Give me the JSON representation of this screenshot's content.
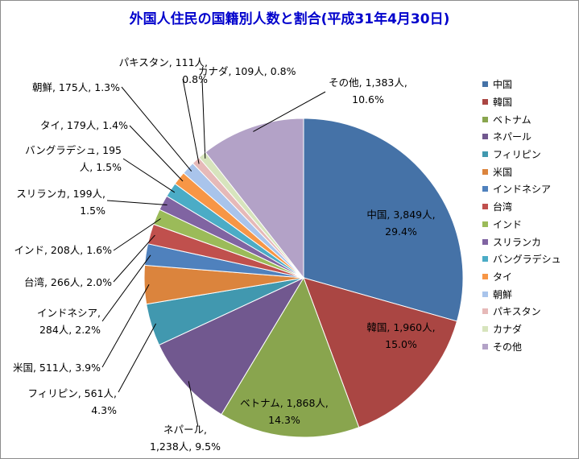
{
  "chart_data": {
    "type": "pie",
    "title": "外国人住民の国籍別人数と割合(平成31年4月30日)",
    "unit": "人",
    "legend_position": "right",
    "slices": [
      {
        "name": "中国",
        "value": 3849,
        "percent": "29.4%",
        "color": "#4572a7",
        "label_lines": [
          "中国, 3,849人,",
          "29.4%"
        ]
      },
      {
        "name": "韓国",
        "value": 1960,
        "percent": "15.0%",
        "color": "#aa4643",
        "label_lines": [
          "韓国, 1,960人,",
          "15.0%"
        ]
      },
      {
        "name": "ベトナム",
        "value": 1868,
        "percent": "14.3%",
        "color": "#89a54e",
        "label_lines": [
          "ベトナム, 1,868人,",
          "14.3%"
        ]
      },
      {
        "name": "ネパール",
        "value": 1238,
        "percent": "9.5%",
        "color": "#71588f",
        "label_lines": [
          "ネパール,",
          "1,238人, 9.5%"
        ]
      },
      {
        "name": "フィリピン",
        "value": 561,
        "percent": "4.3%",
        "color": "#4198af",
        "label_lines": [
          "フィリピン, 561人,",
          "4.3%"
        ]
      },
      {
        "name": "米国",
        "value": 511,
        "percent": "3.9%",
        "color": "#db843d",
        "label_lines": [
          "米国, 511人, 3.9%"
        ]
      },
      {
        "name": "インドネシア",
        "value": 284,
        "percent": "2.2%",
        "color": "#4f81bd",
        "label_lines": [
          "インドネシア,",
          "284人, 2.2%"
        ]
      },
      {
        "name": "台湾",
        "value": 266,
        "percent": "2.0%",
        "color": "#c0504d",
        "label_lines": [
          "台湾, 266人, 2.0%"
        ]
      },
      {
        "name": "インド",
        "value": 208,
        "percent": "1.6%",
        "color": "#9bbb59",
        "label_lines": [
          "インド, 208人, 1.6%"
        ]
      },
      {
        "name": "スリランカ",
        "value": 199,
        "percent": "1.5%",
        "color": "#8064a2",
        "label_lines": [
          "スリランカ, 199人,",
          "1.5%"
        ]
      },
      {
        "name": "バングラデシュ",
        "value": 195,
        "percent": "1.5%",
        "color": "#4bacc6",
        "label_lines": [
          "バングラデシュ, 195",
          "人, 1.5%"
        ]
      },
      {
        "name": "タイ",
        "value": 179,
        "percent": "1.4%",
        "color": "#f79646",
        "label_lines": [
          "タイ, 179人, 1.4%"
        ]
      },
      {
        "name": "朝鮮",
        "value": 175,
        "percent": "1.3%",
        "color": "#a9c4eb",
        "label_lines": [
          "朝鮮, 175人, 1.3%"
        ]
      },
      {
        "name": "パキスタン",
        "value": 111,
        "percent": "0.8%",
        "color": "#e6b9b8",
        "label_lines": [
          "パキスタン, 111人,",
          "0.8%"
        ]
      },
      {
        "name": "カナダ",
        "value": 109,
        "percent": "0.8%",
        "color": "#d7e4bd",
        "label_lines": [
          "カナダ, 109人, 0.8%"
        ]
      },
      {
        "name": "その他",
        "value": 1383,
        "percent": "10.6%",
        "color": "#b3a2c7",
        "label_lines": [
          "その他, 1,383人,",
          "10.6%"
        ]
      }
    ]
  }
}
